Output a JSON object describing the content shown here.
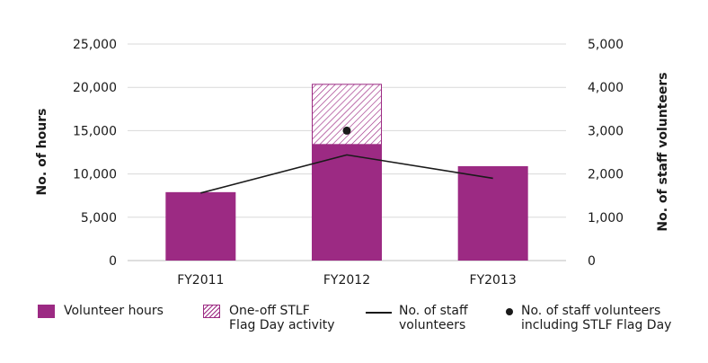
{
  "chart_data": {
    "type": "bar",
    "categories": [
      "FY2011",
      "FY2012",
      "FY2013"
    ],
    "series": [
      {
        "name": "Volunteer hours",
        "kind": "bar",
        "axis": "left",
        "values": [
          7900,
          13400,
          10900
        ],
        "color": "#9c2a83"
      },
      {
        "name": "One-off STLF\nFlag Day activity",
        "kind": "bar-stacked-hatched",
        "axis": "left",
        "values": [
          0,
          7000,
          0
        ],
        "color": "#9c2a83"
      },
      {
        "name": "No. of staff\nvolunteers",
        "kind": "line",
        "axis": "right",
        "values": [
          1560,
          2440,
          1900
        ],
        "color": "#1a1a1a"
      },
      {
        "name": "No. of staff volunteers\nincluding STLF Flag Day",
        "kind": "point",
        "axis": "right",
        "values": [
          null,
          3000,
          null
        ],
        "color": "#1a1a1a"
      }
    ],
    "ylabel": "No. of hours",
    "ylabel_right": "No. of staff volunteers",
    "ylim": [
      0,
      25000
    ],
    "ylim_right": [
      0,
      5000
    ],
    "yticks": [
      "0",
      "5,000",
      "10,000",
      "15,000",
      "20,000",
      "25,000"
    ],
    "yticks_right": [
      "0",
      "1,000",
      "2,000",
      "3,000",
      "4,000",
      "5,000"
    ],
    "grid": true,
    "legend_position": "bottom"
  }
}
